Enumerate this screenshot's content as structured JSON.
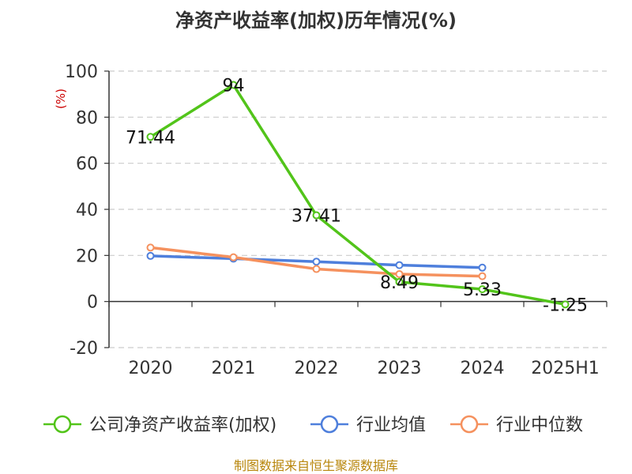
{
  "chart_data": {
    "type": "line",
    "title": "净资产收益率(加权)历年情况(%)",
    "unit_label": "(%)",
    "categories": [
      "2020",
      "2021",
      "2022",
      "2023",
      "2024",
      "2025H1"
    ],
    "y_ticks": [
      "100",
      "80",
      "60",
      "40",
      "20",
      "0",
      "-20"
    ],
    "ylim": [
      -20,
      100
    ],
    "grid": "horizontal dashed",
    "legend_position": "bottom",
    "series": [
      {
        "name": "公司净资产收益率(加权)",
        "color": "#52c41a",
        "values": [
          71.44,
          94,
          37.41,
          8.49,
          5.33,
          -1.25
        ],
        "labels": [
          "71.44",
          "94",
          "37.41",
          "8.49",
          "5.33",
          "-1.25"
        ]
      },
      {
        "name": "行业均值",
        "color": "#4e7fdc",
        "values": [
          19.8,
          18.6,
          17.3,
          15.8,
          14.7,
          null
        ]
      },
      {
        "name": "行业中位数",
        "color": "#f5915e",
        "values": [
          23.4,
          19.2,
          14.1,
          11.9,
          11.0,
          null
        ]
      }
    ]
  },
  "source": "制图数据来自恒生聚源数据库"
}
